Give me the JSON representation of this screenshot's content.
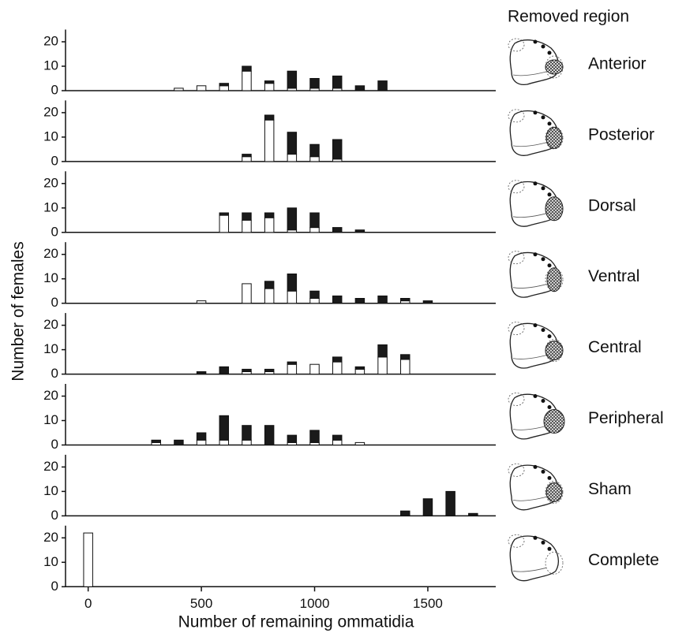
{
  "title": "Removed region",
  "y_label": "Number of females",
  "x_label": "Number of remaining ommatidia",
  "chart_data": [
    {
      "type": "bar",
      "label": "Anterior",
      "x": [
        400,
        500,
        600,
        700,
        800,
        900,
        1000,
        1100,
        1200,
        1300
      ],
      "xlim": [
        -100,
        1800
      ],
      "ylim": [
        0,
        25
      ],
      "yticks": [
        0,
        10,
        20
      ],
      "series": [
        {
          "color": "#ffffff",
          "values": [
            1,
            2,
            2,
            8,
            3,
            1,
            1,
            1,
            0,
            0
          ]
        },
        {
          "color": "#1a1a1a",
          "values": [
            0,
            0,
            1,
            2,
            1,
            7,
            4,
            5,
            2,
            4
          ]
        }
      ]
    },
    {
      "type": "bar",
      "label": "Posterior",
      "x": [
        700,
        800,
        900,
        1000,
        1100
      ],
      "xlim": [
        -100,
        1800
      ],
      "ylim": [
        0,
        25
      ],
      "yticks": [
        0,
        10,
        20
      ],
      "series": [
        {
          "color": "#ffffff",
          "values": [
            2,
            17,
            3,
            2,
            1
          ]
        },
        {
          "color": "#1a1a1a",
          "values": [
            1,
            2,
            9,
            5,
            8
          ]
        }
      ]
    },
    {
      "type": "bar",
      "label": "Dorsal",
      "x": [
        600,
        700,
        800,
        900,
        1000,
        1100,
        1200
      ],
      "xlim": [
        -100,
        1800
      ],
      "ylim": [
        0,
        25
      ],
      "yticks": [
        0,
        10,
        20
      ],
      "series": [
        {
          "color": "#ffffff",
          "values": [
            7,
            5,
            6,
            1,
            2,
            0,
            0
          ]
        },
        {
          "color": "#1a1a1a",
          "values": [
            1,
            3,
            2,
            9,
            6,
            2,
            1
          ]
        }
      ]
    },
    {
      "type": "bar",
      "label": "Ventral",
      "x": [
        500,
        700,
        800,
        900,
        1000,
        1100,
        1200,
        1300,
        1400,
        1500
      ],
      "xlim": [
        -100,
        1800
      ],
      "ylim": [
        0,
        25
      ],
      "yticks": [
        0,
        10,
        20
      ],
      "series": [
        {
          "color": "#ffffff",
          "values": [
            1,
            8,
            6,
            5,
            2,
            0,
            0,
            0,
            1,
            0
          ]
        },
        {
          "color": "#1a1a1a",
          "values": [
            0,
            0,
            3,
            7,
            3,
            3,
            2,
            3,
            1,
            1
          ]
        }
      ]
    },
    {
      "type": "bar",
      "label": "Central",
      "x": [
        500,
        600,
        700,
        800,
        900,
        1000,
        1100,
        1200,
        1300,
        1400
      ],
      "xlim": [
        -100,
        1800
      ],
      "ylim": [
        0,
        25
      ],
      "yticks": [
        0,
        10,
        20
      ],
      "series": [
        {
          "color": "#ffffff",
          "values": [
            0,
            0,
            1,
            1,
            4,
            4,
            5,
            2,
            7,
            6
          ]
        },
        {
          "color": "#1a1a1a",
          "values": [
            1,
            3,
            1,
            1,
            1,
            0,
            2,
            1,
            5,
            2
          ]
        }
      ]
    },
    {
      "type": "bar",
      "label": "Peripheral",
      "x": [
        300,
        400,
        500,
        600,
        700,
        800,
        900,
        1000,
        1100,
        1200
      ],
      "xlim": [
        -100,
        1800
      ],
      "ylim": [
        0,
        25
      ],
      "yticks": [
        0,
        10,
        20
      ],
      "series": [
        {
          "color": "#ffffff",
          "values": [
            1,
            0,
            2,
            2,
            2,
            0,
            1,
            1,
            2,
            1
          ]
        },
        {
          "color": "#1a1a1a",
          "values": [
            1,
            2,
            3,
            10,
            6,
            8,
            3,
            5,
            2,
            0
          ]
        }
      ]
    },
    {
      "type": "bar",
      "label": "Sham",
      "x": [
        1400,
        1500,
        1600,
        1700
      ],
      "xlim": [
        -100,
        1800
      ],
      "ylim": [
        0,
        25
      ],
      "yticks": [
        0,
        10,
        20
      ],
      "series": [
        {
          "color": "#ffffff",
          "values": [
            0,
            0,
            0,
            0
          ]
        },
        {
          "color": "#1a1a1a",
          "values": [
            2,
            7,
            10,
            1
          ]
        }
      ]
    },
    {
      "type": "bar",
      "label": "Complete",
      "x": [
        0
      ],
      "xlim": [
        -100,
        1800
      ],
      "ylim": [
        0,
        25
      ],
      "yticks": [
        0,
        10,
        20
      ],
      "xticks": [
        0,
        500,
        1000,
        1500
      ],
      "series": [
        {
          "color": "#ffffff",
          "values": [
            22
          ]
        },
        {
          "color": "#1a1a1a",
          "values": [
            0
          ]
        }
      ]
    }
  ]
}
